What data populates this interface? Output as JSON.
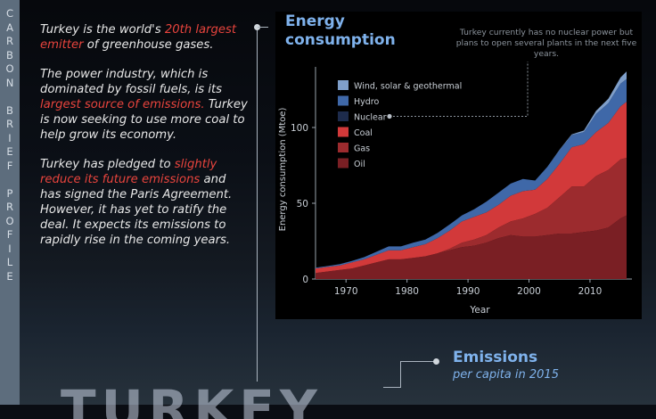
{
  "side_label": "CARBON BRIEF PROFILE",
  "intro": {
    "p1_before": "Turkey is the world's ",
    "p1_hl": "20th largest emitter",
    "p1_after": " of greenhouse gases.",
    "p2_before": "The power industry, which is dominated by fossil fuels, is its ",
    "p2_hl": "largest source of emissions.",
    "p2_after": " Turkey is now seeking to use more coal to help grow its economy.",
    "p3_before": "Turkey has pledged to ",
    "p3_hl": "slightly reduce its future emissions",
    "p3_after": " and has signed the Paris Agreement. However, it has yet to ratify the deal. It expects its emissions to rapidly rise in the coming years."
  },
  "chart_title": "Energy consumption",
  "note": "Turkey currently has no nuclear power but plans to open several plants in the next five years.",
  "emissions": {
    "title": "Emissions",
    "subtitle": "per capita in 2015"
  },
  "big_word": "TURKEY",
  "colors": {
    "accent_blue": "#7fb2ec",
    "highlight_red": "#e8443d",
    "oil": "#7a1f24",
    "gas": "#9c2b2e",
    "coal": "#d2393a",
    "nuclear": "#1d2b4c",
    "hydro": "#3f68a8",
    "renewables": "#7f9fca"
  },
  "chart_data": {
    "type": "area",
    "stacked": true,
    "title": "Energy consumption",
    "xlabel": "Year",
    "ylabel": "Energy consumption (Mtoe)",
    "xlim": [
      1965,
      2016
    ],
    "ylim": [
      0,
      140
    ],
    "xticks": [
      1970,
      1980,
      1990,
      2000,
      2010
    ],
    "yticks": [
      0,
      50,
      100
    ],
    "legend_position": "top-left",
    "x": [
      1965,
      1967,
      1969,
      1971,
      1973,
      1975,
      1977,
      1979,
      1981,
      1983,
      1985,
      1987,
      1989,
      1991,
      1993,
      1995,
      1997,
      1999,
      2001,
      2003,
      2005,
      2007,
      2009,
      2011,
      2013,
      2015,
      2016
    ],
    "series": [
      {
        "name": "Oil",
        "color": "#7a1f24",
        "values": [
          4,
          5,
          6,
          7,
          9,
          11,
          13,
          13,
          14,
          15,
          17,
          19,
          21,
          22,
          24,
          27,
          29,
          28,
          28,
          29,
          30,
          30,
          31,
          32,
          34,
          40,
          42
        ]
      },
      {
        "name": "Gas",
        "color": "#9c2b2e",
        "values": [
          0,
          0,
          0,
          0,
          0,
          0,
          0,
          0,
          0,
          0,
          0,
          1,
          3,
          4,
          5,
          7,
          9,
          12,
          15,
          18,
          24,
          31,
          30,
          36,
          38,
          39,
          38
        ]
      },
      {
        "name": "Coal",
        "color": "#d2393a",
        "values": [
          3,
          3,
          3,
          4,
          4,
          5,
          6,
          6,
          7,
          8,
          10,
          12,
          14,
          15,
          15,
          15,
          17,
          18,
          16,
          19,
          22,
          26,
          28,
          29,
          31,
          35,
          37
        ]
      },
      {
        "name": "Nuclear",
        "color": "#1d2b4c",
        "values": [
          0,
          0,
          0,
          0,
          0,
          0,
          0,
          0,
          0,
          0,
          0,
          0,
          0,
          0,
          0,
          0,
          0,
          0,
          0,
          0,
          0,
          0,
          0,
          0,
          0,
          0,
          0
        ]
      },
      {
        "name": "Hydro",
        "color": "#3f68a8",
        "values": [
          0.5,
          0.6,
          0.8,
          1,
          1.5,
          2,
          2.5,
          2.5,
          3,
          3,
          3.5,
          4,
          4,
          5,
          7,
          8,
          8,
          8,
          6,
          8,
          9,
          8,
          8,
          12,
          13,
          15,
          15
        ]
      },
      {
        "name": "Wind, solar & geothermal",
        "color": "#7f9fca",
        "values": [
          0,
          0,
          0,
          0,
          0,
          0,
          0,
          0,
          0,
          0,
          0,
          0,
          0,
          0,
          0,
          0,
          0,
          0,
          0,
          0,
          0.3,
          0.5,
          1,
          2,
          3,
          4,
          5
        ]
      }
    ],
    "annotation": "Turkey currently has no nuclear power but plans to open several plants in the next five years."
  }
}
